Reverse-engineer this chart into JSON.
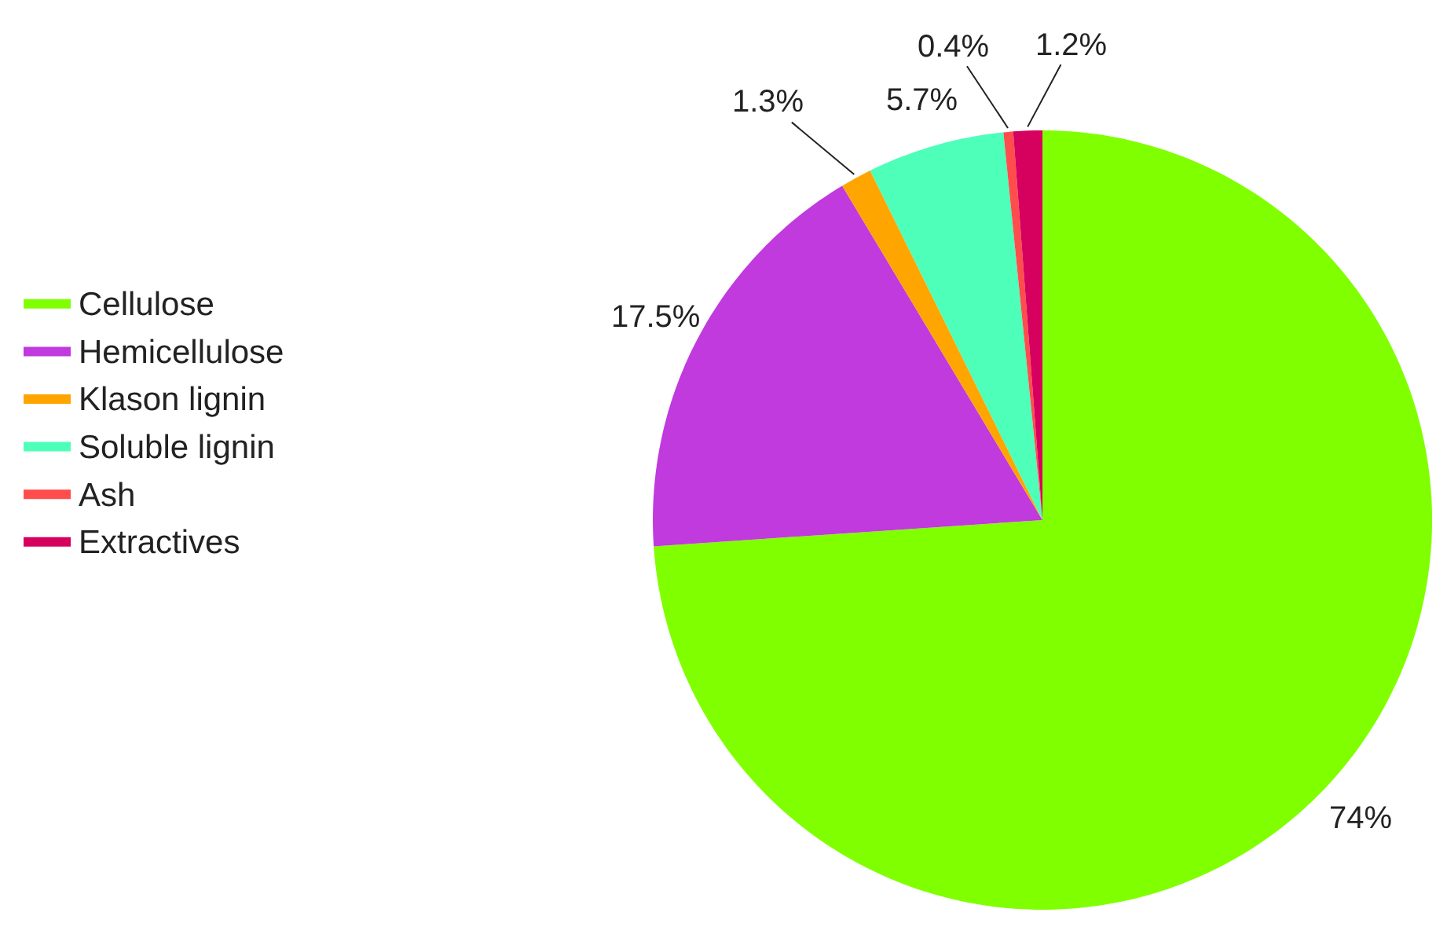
{
  "chart_data": {
    "type": "pie",
    "categories": [
      "Cellulose",
      "Hemicellulose",
      "Klason lignin",
      "Soluble lignin",
      "Ash",
      "Extractives"
    ],
    "values": [
      74,
      17.5,
      1.3,
      5.7,
      0.4,
      1.2
    ],
    "value_labels": [
      "74%",
      "17.5%",
      "1.3%",
      "5.7%",
      "0.4%",
      "1.2%"
    ],
    "colors": [
      "#80ff00",
      "#c03add",
      "#ffa500",
      "#4dffb8",
      "#ff4d4d",
      "#d6005e"
    ],
    "legend": "left"
  }
}
